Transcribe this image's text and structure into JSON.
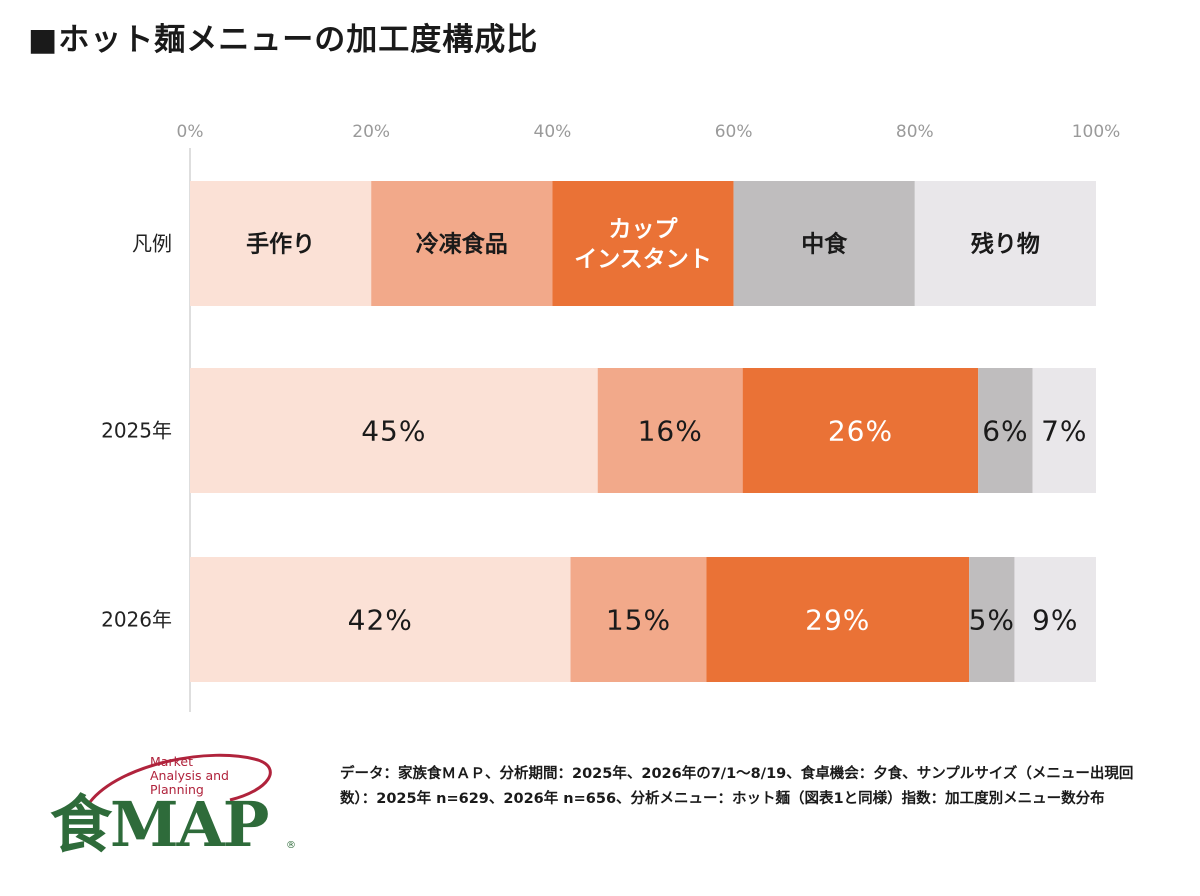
{
  "title": "■ホット麺メニューの加工度構成比",
  "colors": {
    "handmade": "#fbe1d6",
    "frozen": "#f2a98a",
    "instant": "#ea7236",
    "nakashoku": "#bfbdbe",
    "leftovers": "#e9e7ea",
    "axis": "#d4d4d4"
  },
  "chart_data": {
    "type": "bar",
    "orientation": "horizontal",
    "stacked": true,
    "xlim": [
      0,
      100
    ],
    "x_ticks": [
      "0%",
      "20%",
      "40%",
      "60%",
      "80%",
      "100%"
    ],
    "legend_row_label": "凡例",
    "legend": [
      {
        "key": "handmade",
        "lines": [
          "手作り"
        ]
      },
      {
        "key": "frozen",
        "lines": [
          "冷凍食品"
        ]
      },
      {
        "key": "instant",
        "lines": [
          "カップ",
          "インスタント"
        ]
      },
      {
        "key": "nakashoku",
        "lines": [
          "中食"
        ]
      },
      {
        "key": "leftovers",
        "lines": [
          "残り物"
        ]
      }
    ],
    "categories": [
      "2025年",
      "2026年"
    ],
    "series": [
      {
        "key": "handmade",
        "values": [
          45,
          42
        ]
      },
      {
        "key": "frozen",
        "values": [
          16,
          15
        ]
      },
      {
        "key": "instant",
        "values": [
          26,
          29
        ]
      },
      {
        "key": "nakashoku",
        "values": [
          6,
          5
        ]
      },
      {
        "key": "leftovers",
        "values": [
          7,
          9
        ]
      }
    ],
    "value_labels": [
      [
        "45%",
        "16%",
        "26%",
        "6%",
        "7%"
      ],
      [
        "42%",
        "15%",
        "29%",
        "5%",
        "9%"
      ]
    ]
  },
  "logo": {
    "text_lines": [
      "Market",
      "Analysis and",
      "Planning"
    ],
    "mark": "食MAP",
    "registered": "®"
  },
  "source_note": "データ：家族食ＭＡＰ、分析期間：2025年、2026年の7/1～8/19、食卓機会：夕食、サンプルサイズ（メニュー出現回数）：2025年 n=629、2026年 n=656、分析メニュー：ホット麺（図表1と同様）指数：加工度別メニュー数分布"
}
